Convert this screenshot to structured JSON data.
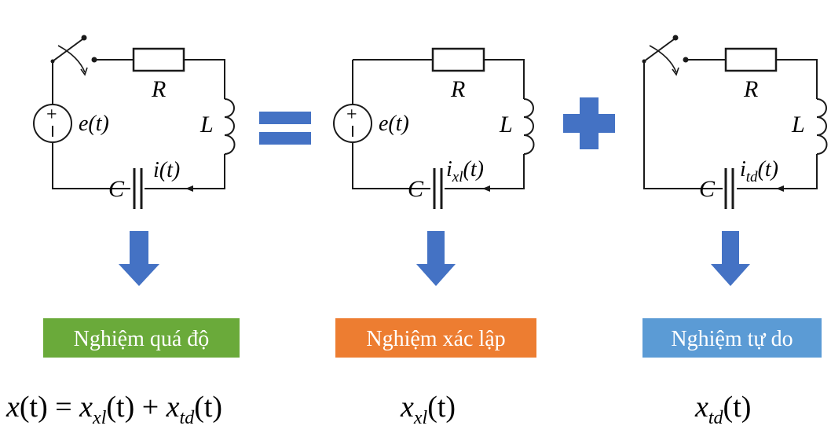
{
  "colors": {
    "arrow": "#4472c4",
    "symbol": "#4472c4",
    "green": "#6aaa3a",
    "orange": "#ed7d31",
    "blue": "#5b9bd5"
  },
  "circuits": [
    {
      "r_label": "R",
      "l_label": "L",
      "c_label": "C",
      "source_label": "e(t)",
      "current_main": "i",
      "current_sub": "",
      "current_arg": "(t)"
    },
    {
      "r_label": "R",
      "l_label": "L",
      "c_label": "C",
      "source_label": "e(t)",
      "current_main": "i",
      "current_sub": "xl",
      "current_arg": "(t)"
    },
    {
      "r_label": "R",
      "l_label": "L",
      "c_label": "C",
      "current_main": "i",
      "current_sub": "td",
      "current_arg": "(t)"
    }
  ],
  "operators": {
    "equals": "=",
    "plus": "+"
  },
  "boxes": {
    "total": "Nghiệm quá độ",
    "steady": "Nghiệm xác lập",
    "free": "Nghiệm tự do"
  },
  "formulas": {
    "total": {
      "x1": "x",
      "a1": "(t) = ",
      "x2": "x",
      "s2": "xl",
      "a2": "(t) + ",
      "x3": "x",
      "s3": "td",
      "a3": "(t)"
    },
    "steady": {
      "x": "x",
      "sub": "xl",
      "arg": "(t)"
    },
    "free": {
      "x": "x",
      "sub": "td",
      "arg": "(t)"
    }
  }
}
